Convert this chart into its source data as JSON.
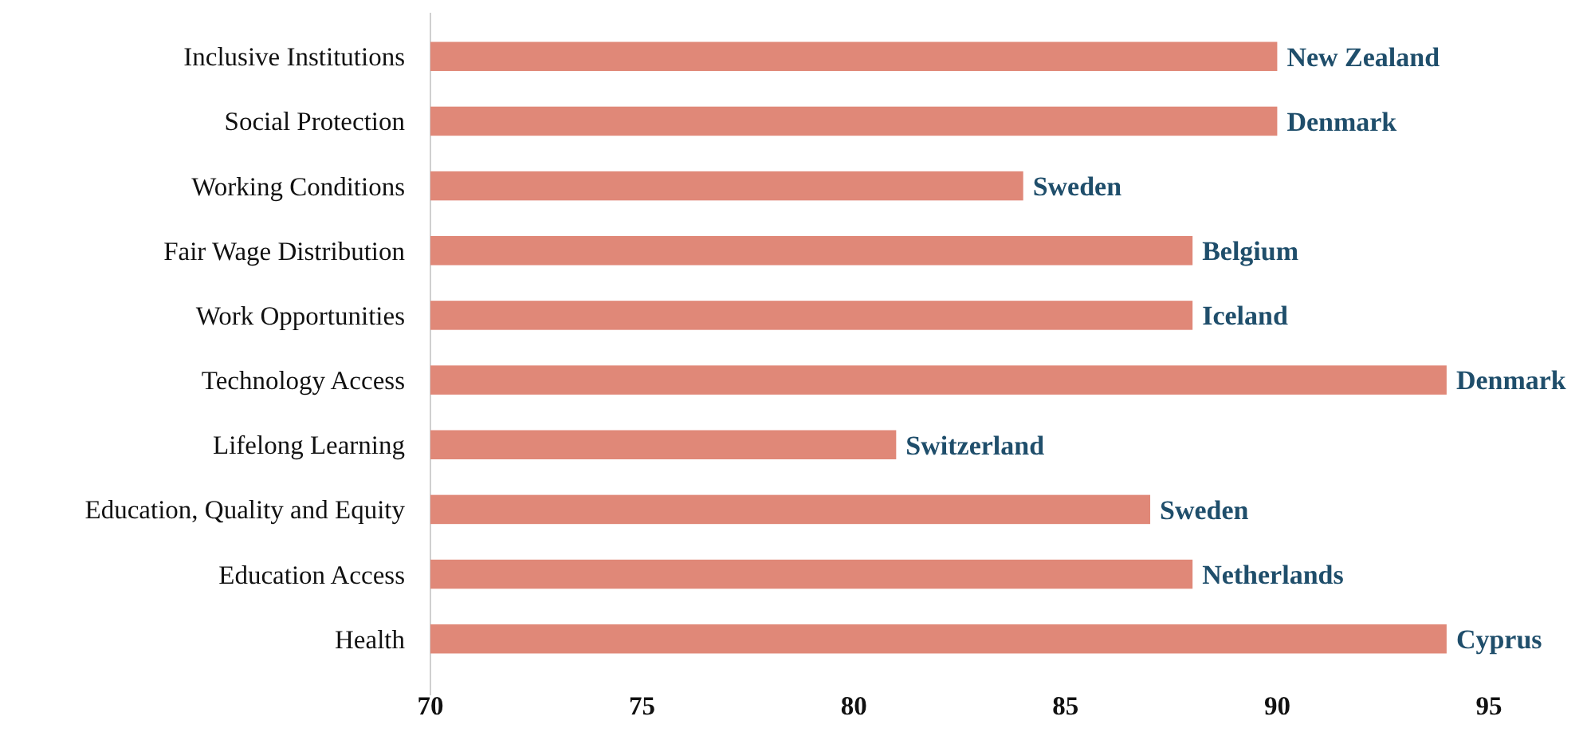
{
  "chart_data": {
    "type": "bar",
    "orientation": "horizontal",
    "categories": [
      "Inclusive Institutions",
      "Social Protection",
      "Working Conditions",
      "Fair Wage Distribution",
      "Work Opportunities",
      "Technology Access",
      "Lifelong Learning",
      "Education, Quality and Equity",
      "Education Access",
      "Health"
    ],
    "values": [
      90,
      90,
      84,
      88,
      88,
      94,
      81,
      87,
      88,
      94
    ],
    "value_labels": [
      "New Zealand",
      "Denmark",
      "Sweden",
      "Belgium",
      "Iceland",
      "Denmark",
      "Switzerland",
      "Sweden",
      "Netherlands",
      "Cyprus"
    ],
    "color": "#e08878",
    "xlim": [
      70,
      95
    ],
    "xticks": [
      70,
      75,
      80,
      85,
      90,
      95
    ],
    "grid": false
  }
}
